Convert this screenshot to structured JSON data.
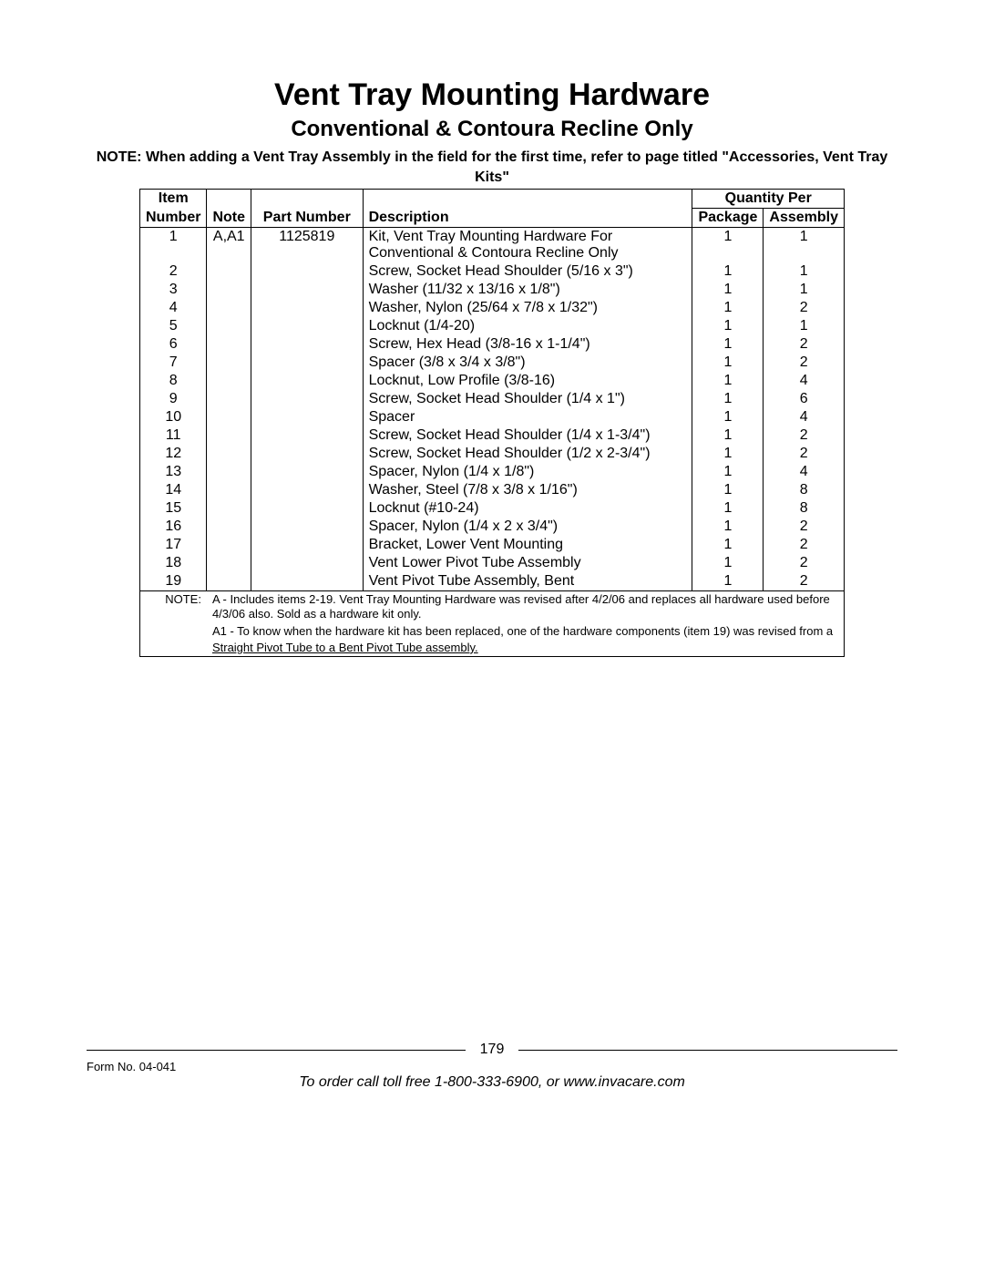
{
  "title": "Vent Tray Mounting Hardware",
  "subtitle": "Conventional & Contoura Recline Only",
  "top_note": "NOTE: When adding a Vent Tray Assembly in the field for the first time, refer to page titled \"Accessories, Vent Tray Kits\"",
  "headers": {
    "item_number_line1": "Item",
    "item_number_line2": "Number",
    "note": "Note",
    "part_number": "Part Number",
    "description": "Description",
    "quantity_per": "Quantity Per",
    "package": "Package",
    "assembly": "Assembly"
  },
  "rows": [
    {
      "item": "1",
      "note": "A,A1",
      "part": "1125819",
      "desc": "Kit, Vent Tray Mounting Hardware For Conventional & Contoura Recline Only",
      "pkg": "1",
      "asm": "1"
    },
    {
      "item": "2",
      "note": "",
      "part": "",
      "desc": "Screw, Socket Head Shoulder (5/16 x 3\")",
      "pkg": "1",
      "asm": "1"
    },
    {
      "item": "3",
      "note": "",
      "part": "",
      "desc": "Washer (11/32 x 13/16 x 1/8\")",
      "pkg": "1",
      "asm": "1"
    },
    {
      "item": "4",
      "note": "",
      "part": "",
      "desc": "Washer, Nylon (25/64 x 7/8 x 1/32\")",
      "pkg": "1",
      "asm": "2"
    },
    {
      "item": "5",
      "note": "",
      "part": "",
      "desc": "Locknut (1/4-20)",
      "pkg": "1",
      "asm": "1"
    },
    {
      "item": "6",
      "note": "",
      "part": "",
      "desc": "Screw, Hex Head (3/8-16 x 1-1/4\")",
      "pkg": "1",
      "asm": "2"
    },
    {
      "item": "7",
      "note": "",
      "part": "",
      "desc": "Spacer (3/8 x 3/4 x 3/8\")",
      "pkg": "1",
      "asm": "2"
    },
    {
      "item": "8",
      "note": "",
      "part": "",
      "desc": "Locknut, Low Profile (3/8-16)",
      "pkg": "1",
      "asm": "4"
    },
    {
      "item": "9",
      "note": "",
      "part": "",
      "desc": "Screw, Socket Head Shoulder (1/4 x 1\")",
      "pkg": "1",
      "asm": "6"
    },
    {
      "item": "10",
      "note": "",
      "part": "",
      "desc": "Spacer",
      "pkg": "1",
      "asm": "4"
    },
    {
      "item": "11",
      "note": "",
      "part": "",
      "desc": "Screw, Socket Head Shoulder (1/4 x 1-3/4\")",
      "pkg": "1",
      "asm": "2"
    },
    {
      "item": "12",
      "note": "",
      "part": "",
      "desc": "Screw, Socket Head Shoulder (1/2 x 2-3/4\")",
      "pkg": "1",
      "asm": "2"
    },
    {
      "item": "13",
      "note": "",
      "part": "",
      "desc": "Spacer, Nylon (1/4 x 1/8\")",
      "pkg": "1",
      "asm": "4"
    },
    {
      "item": "14",
      "note": "",
      "part": "",
      "desc": "Washer, Steel (7/8 x 3/8 x 1/16\")",
      "pkg": "1",
      "asm": "8"
    },
    {
      "item": "15",
      "note": "",
      "part": "",
      "desc": "Locknut (#10-24)",
      "pkg": "1",
      "asm": "8"
    },
    {
      "item": "16",
      "note": "",
      "part": "",
      "desc": "Spacer, Nylon (1/4 x 2 x 3/4\")",
      "pkg": "1",
      "asm": "2"
    },
    {
      "item": "17",
      "note": "",
      "part": "",
      "desc": "Bracket, Lower Vent Mounting",
      "pkg": "1",
      "asm": "2"
    },
    {
      "item": "18",
      "note": "",
      "part": "",
      "desc": "Vent Lower Pivot Tube Assembly",
      "pkg": "1",
      "asm": "2"
    },
    {
      "item": "19",
      "note": "",
      "part": "",
      "desc": "Vent Pivot Tube Assembly, Bent",
      "pkg": "1",
      "asm": "2"
    }
  ],
  "footnote_label": "NOTE:",
  "footnote_a": "A - Includes items 2-19. Vent Tray Mounting Hardware was revised after 4/2/06 and replaces all hardware used before 4/3/06 also. Sold as a hardware kit only.",
  "footnote_a1_line1": "A1 - To know when the hardware kit has been replaced, one of the hardware components (item 19) was revised from a",
  "footnote_a1_line2": "Straight Pivot Tube to a Bent Pivot Tube assembly.",
  "page_number": "179",
  "form_no": "Form No. 04-041",
  "order_line": "To order call toll free 1-800-333-6900, or www.invacare.com"
}
